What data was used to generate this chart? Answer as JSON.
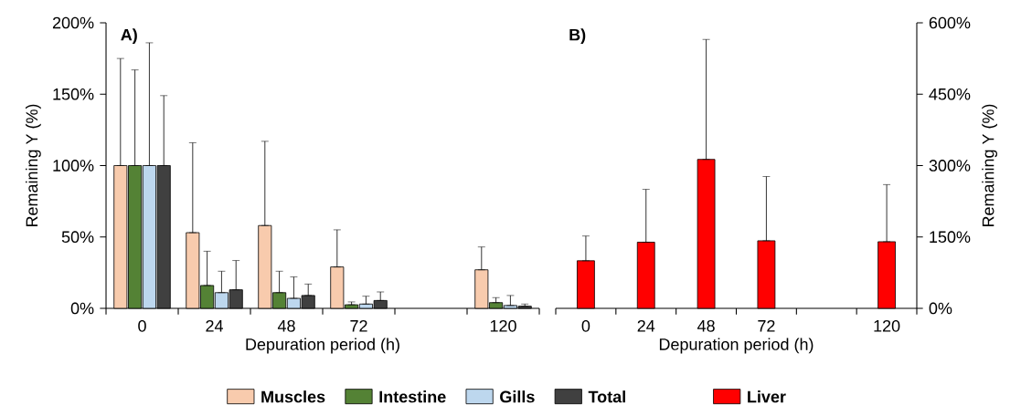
{
  "chart_data": [
    {
      "type": "bar",
      "annotations": [
        "A)"
      ],
      "xlabel": "Depuration period (h)",
      "ylabel": "Remaining Y (%)",
      "categories": [
        "0",
        "24",
        "48",
        "72",
        null,
        "120"
      ],
      "ylim": [
        0,
        200
      ],
      "yticks": [
        {
          "value": 0,
          "label": "0%"
        },
        {
          "value": 50,
          "label": "50%"
        },
        {
          "value": 100,
          "label": "100%"
        },
        {
          "value": 150,
          "label": "150%"
        },
        {
          "value": 200,
          "label": "200%"
        }
      ],
      "legend": "bottom",
      "series": [
        {
          "name": "Muscles",
          "color": "#f8cbad",
          "values": [
            100,
            53,
            58,
            29,
            null,
            27
          ],
          "errors": [
            [
              100,
              175
            ],
            [
              53,
              116
            ],
            [
              58,
              117
            ],
            [
              29,
              55
            ],
            null,
            [
              27,
              43
            ]
          ]
        },
        {
          "name": "Intestine",
          "color": "#548235",
          "values": [
            100,
            16,
            11,
            2.5,
            null,
            4
          ],
          "errors": [
            [
              100,
              167
            ],
            [
              16,
              40
            ],
            [
              11,
              26
            ],
            [
              2.5,
              4.5
            ],
            null,
            [
              4,
              7.5
            ]
          ]
        },
        {
          "name": "Gills",
          "color": "#bdd7ee",
          "values": [
            100,
            11,
            7,
            3,
            null,
            2
          ],
          "errors": [
            [
              100,
              186
            ],
            [
              11,
              26
            ],
            [
              7,
              22
            ],
            [
              3,
              8.5
            ],
            null,
            [
              2,
              9
            ]
          ]
        },
        {
          "name": "Total",
          "color": "#404040",
          "values": [
            100,
            13,
            9,
            5.5,
            null,
            1.5
          ],
          "errors": [
            [
              100,
              149
            ],
            [
              13,
              33.5
            ],
            [
              9,
              17
            ],
            [
              5.5,
              11.5
            ],
            null,
            [
              1.5,
              3
            ]
          ]
        }
      ]
    },
    {
      "type": "bar",
      "annotations": [
        "B)"
      ],
      "xlabel": "Depuration period (h)",
      "ylabel": "Remaining Y (%)",
      "categories": [
        "0",
        "24",
        "48",
        "72",
        null,
        "120"
      ],
      "ylim": [
        0,
        600
      ],
      "yticks": [
        {
          "value": 0,
          "label": "0%"
        },
        {
          "value": 150,
          "label": "150%"
        },
        {
          "value": 300,
          "label": "300%"
        },
        {
          "value": 450,
          "label": "450%"
        },
        {
          "value": 600,
          "label": "600%"
        }
      ],
      "legend": "bottom",
      "series": [
        {
          "name": "Liver",
          "color": "#ff0000",
          "values": [
            100,
            139,
            313,
            142,
            null,
            140
          ],
          "errors": [
            [
              100,
              152
            ],
            [
              139,
              250
            ],
            [
              313,
              565
            ],
            [
              142,
              277
            ],
            null,
            [
              140,
              260
            ]
          ]
        }
      ]
    }
  ]
}
